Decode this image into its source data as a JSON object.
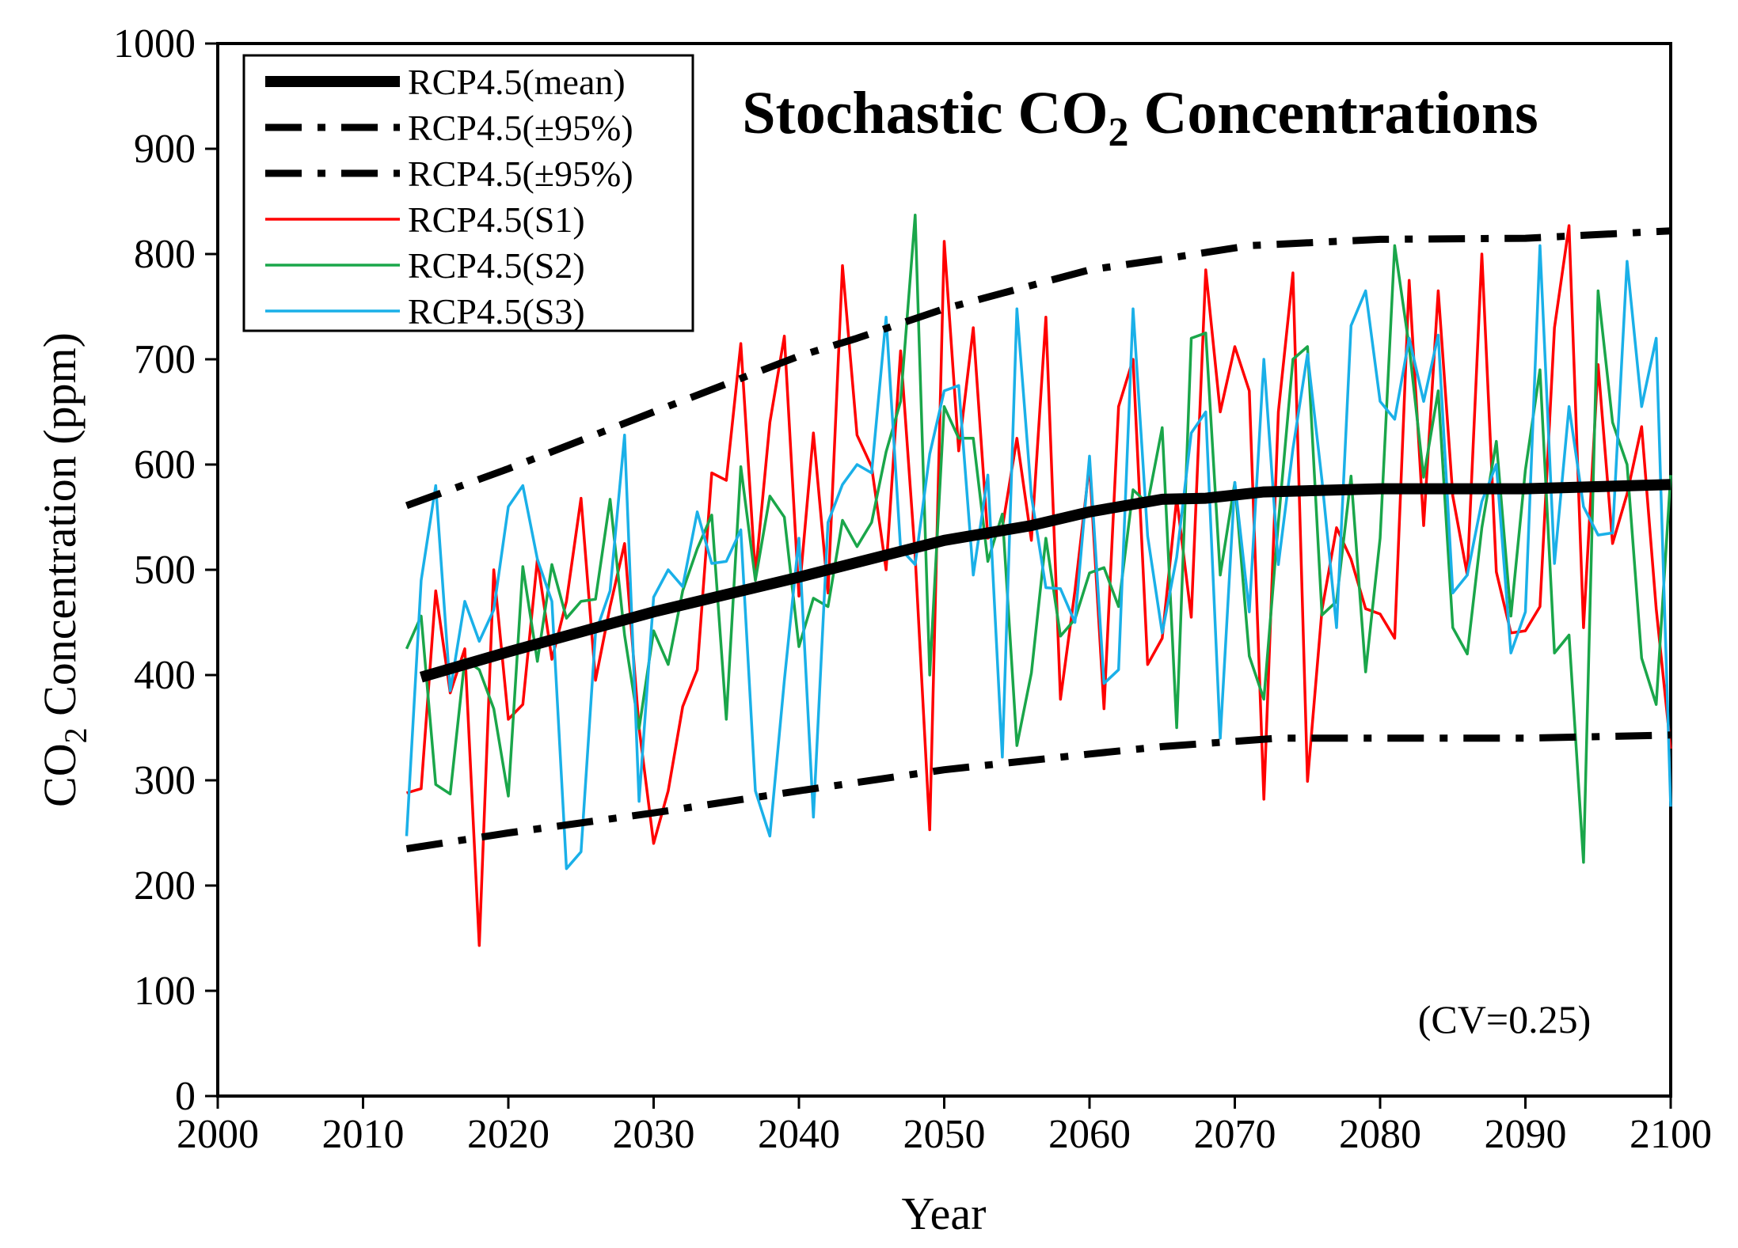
{
  "chart_data": {
    "type": "line",
    "title": {
      "prefix": "Stochastic CO",
      "sub": "2",
      "suffix": " Concentrations"
    },
    "xlabel": "Year",
    "ylabel": {
      "prefix": "CO",
      "sub": "2",
      "suffix": " Concentration (ppm)"
    },
    "xlim": [
      2000,
      2100
    ],
    "ylim": [
      0,
      1000
    ],
    "xticks": [
      2000,
      2010,
      2020,
      2030,
      2040,
      2050,
      2060,
      2070,
      2080,
      2090,
      2100
    ],
    "yticks": [
      0,
      100,
      200,
      300,
      400,
      500,
      600,
      700,
      800,
      900,
      1000
    ],
    "annotation": "(CV=0.25)",
    "legend_position": "top-left",
    "series": [
      {
        "name": "RCP4.5(mean)",
        "color": "#000000",
        "style": "solid-thick",
        "x": [
          2014,
          2020,
          2030,
          2040,
          2050,
          2056,
          2060,
          2065,
          2068,
          2072,
          2080,
          2090,
          2100
        ],
        "y": [
          398,
          422,
          460,
          493,
          528,
          542,
          555,
          567,
          568,
          574,
          577,
          577,
          581
        ]
      },
      {
        "name": "RCP4.5(±95%)",
        "color": "#000000",
        "style": "dashdot",
        "x": [
          2013,
          2020,
          2030,
          2040,
          2044,
          2050,
          2060,
          2065,
          2071,
          2080,
          2090,
          2100
        ],
        "y": [
          561,
          596,
          650,
          703,
          720,
          748,
          785,
          795,
          808,
          814,
          815,
          822
        ]
      },
      {
        "name": "RCP4.5(±95%)",
        "color": "#000000",
        "style": "dashdot",
        "x": [
          2013,
          2020,
          2030,
          2040,
          2050,
          2060,
          2065,
          2073,
          2080,
          2090,
          2100
        ],
        "y": [
          235,
          250,
          269,
          290,
          310,
          325,
          332,
          340,
          340,
          340,
          343
        ]
      },
      {
        "name": "RCP4.5(S1)",
        "color": "#ff0000",
        "style": "solid",
        "x": [
          2013,
          2014,
          2015,
          2016,
          2017,
          2018,
          2019,
          2020,
          2021,
          2022,
          2023,
          2024,
          2025,
          2026,
          2027,
          2028,
          2029,
          2030,
          2031,
          2032,
          2033,
          2034,
          2035,
          2036,
          2037,
          2038,
          2039,
          2040,
          2041,
          2042,
          2043,
          2044,
          2045,
          2046,
          2047,
          2048,
          2049,
          2050,
          2051,
          2052,
          2053,
          2054,
          2055,
          2056,
          2057,
          2058,
          2059,
          2060,
          2061,
          2062,
          2063,
          2064,
          2065,
          2066,
          2067,
          2068,
          2069,
          2070,
          2071,
          2072,
          2073,
          2074,
          2075,
          2076,
          2077,
          2078,
          2079,
          2080,
          2081,
          2082,
          2083,
          2084,
          2085,
          2086,
          2087,
          2088,
          2089,
          2090,
          2091,
          2092,
          2093,
          2094,
          2095,
          2096,
          2097,
          2098,
          2099,
          2100
        ],
        "y": [
          288,
          292,
          480,
          383,
          425,
          143,
          500,
          358,
          372,
          510,
          415,
          470,
          568,
          395,
          465,
          525,
          350,
          240,
          290,
          370,
          405,
          592,
          585,
          715,
          495,
          640,
          722,
          475,
          630,
          478,
          789,
          628,
          598,
          500,
          708,
          513,
          253,
          812,
          613,
          730,
          530,
          540,
          625,
          528,
          740,
          377,
          480,
          600,
          368,
          655,
          700,
          410,
          435,
          568,
          455,
          785,
          650,
          712,
          670,
          282,
          650,
          782,
          299,
          462,
          540,
          510,
          463,
          458,
          435,
          775,
          542,
          765,
          570,
          495,
          800,
          498,
          440,
          442,
          465,
          730,
          827,
          445,
          695,
          525,
          572,
          636,
          463,
          330
        ]
      },
      {
        "name": "RCP4.5(S2)",
        "color": "#1aa64a",
        "style": "solid",
        "x": [
          2013,
          2014,
          2015,
          2016,
          2017,
          2018,
          2019,
          2020,
          2021,
          2022,
          2023,
          2024,
          2025,
          2026,
          2027,
          2028,
          2029,
          2030,
          2031,
          2032,
          2033,
          2034,
          2035,
          2036,
          2037,
          2038,
          2039,
          2040,
          2041,
          2042,
          2043,
          2044,
          2045,
          2046,
          2047,
          2048,
          2049,
          2050,
          2051,
          2052,
          2053,
          2054,
          2055,
          2056,
          2057,
          2058,
          2059,
          2060,
          2061,
          2062,
          2063,
          2064,
          2065,
          2066,
          2067,
          2068,
          2069,
          2070,
          2071,
          2072,
          2073,
          2074,
          2075,
          2076,
          2077,
          2078,
          2079,
          2080,
          2081,
          2082,
          2083,
          2084,
          2085,
          2086,
          2087,
          2088,
          2089,
          2090,
          2091,
          2092,
          2093,
          2094,
          2095,
          2096,
          2097,
          2098,
          2099,
          2100
        ],
        "y": [
          425,
          456,
          296,
          287,
          415,
          405,
          368,
          285,
          503,
          413,
          505,
          454,
          470,
          472,
          567,
          438,
          349,
          442,
          410,
          480,
          520,
          552,
          358,
          598,
          490,
          570,
          550,
          427,
          473,
          465,
          547,
          522,
          545,
          612,
          660,
          837,
          400,
          655,
          625,
          625,
          508,
          553,
          333,
          402,
          530,
          437,
          453,
          497,
          502,
          465,
          576,
          563,
          635,
          350,
          720,
          725,
          495,
          583,
          418,
          377,
          545,
          700,
          712,
          457,
          470,
          589,
          403,
          530,
          808,
          712,
          588,
          670,
          445,
          420,
          540,
          622,
          456,
          595,
          690,
          421,
          438,
          222,
          765,
          640,
          600,
          416,
          372,
          590
        ]
      },
      {
        "name": "RCP4.5(S3)",
        "color": "#1ab0e8",
        "style": "solid",
        "x": [
          2013,
          2014,
          2015,
          2016,
          2017,
          2018,
          2019,
          2020,
          2021,
          2022,
          2023,
          2024,
          2025,
          2026,
          2027,
          2028,
          2029,
          2030,
          2031,
          2032,
          2033,
          2034,
          2035,
          2036,
          2037,
          2038,
          2039,
          2040,
          2041,
          2042,
          2043,
          2044,
          2045,
          2046,
          2047,
          2048,
          2049,
          2050,
          2051,
          2052,
          2053,
          2054,
          2055,
          2056,
          2057,
          2058,
          2059,
          2060,
          2061,
          2062,
          2063,
          2064,
          2065,
          2066,
          2067,
          2068,
          2069,
          2070,
          2071,
          2072,
          2073,
          2074,
          2075,
          2076,
          2077,
          2078,
          2079,
          2080,
          2081,
          2082,
          2083,
          2084,
          2085,
          2086,
          2087,
          2088,
          2089,
          2090,
          2091,
          2092,
          2093,
          2094,
          2095,
          2096,
          2097,
          2098,
          2099,
          2100
        ],
        "y": [
          247,
          490,
          580,
          385,
          470,
          432,
          462,
          560,
          580,
          510,
          470,
          216,
          232,
          440,
          480,
          628,
          280,
          474,
          500,
          484,
          555,
          506,
          508,
          538,
          290,
          247,
          395,
          530,
          265,
          545,
          581,
          600,
          592,
          740,
          520,
          505,
          610,
          670,
          675,
          495,
          590,
          322,
          748,
          570,
          483,
          482,
          450,
          608,
          392,
          405,
          748,
          532,
          440,
          512,
          630,
          650,
          340,
          583,
          460,
          700,
          505,
          615,
          705,
          585,
          445,
          732,
          765,
          660,
          643,
          720,
          660,
          723,
          478,
          495,
          565,
          600,
          421,
          460,
          808,
          506,
          655,
          560,
          533,
          535,
          793,
          655,
          720,
          275
        ]
      }
    ]
  }
}
